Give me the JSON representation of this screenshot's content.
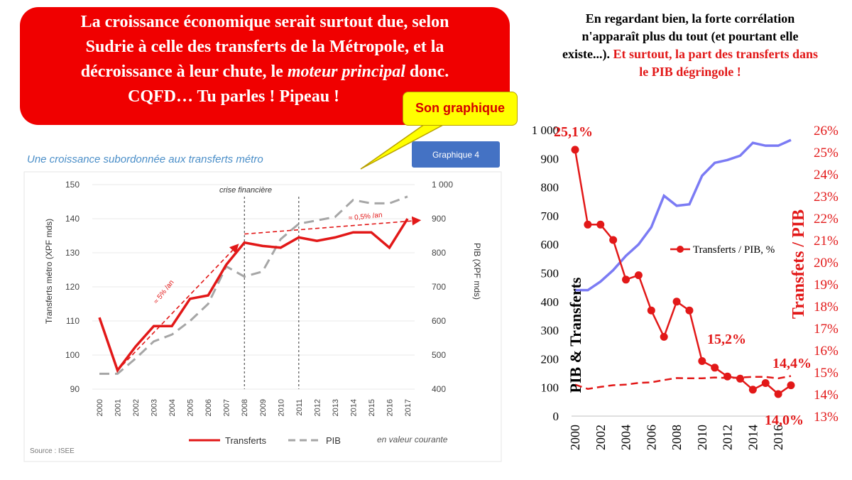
{
  "banner": {
    "line1": "La croissance économique serait surtout due, selon",
    "line2": "Sudrie à celle des transferts de la Métropole, et la",
    "line3_before": "décroissance à leur chute, le",
    "line3_italic": "moteur principal",
    "line3_after": "donc.",
    "line4": "CQFD… Tu parles ! Pipeau !"
  },
  "callout": {
    "label": "Son graphique"
  },
  "right_text": {
    "black": "En regardant bien, la forte corrélation n'apparaît plus du tout (et pourtant elle existe...).",
    "red": "Et surtout, la part des transferts dans le PIB dégringole !"
  },
  "colors": {
    "red": "#e21818",
    "blue": "#7b7bf4",
    "grey": "#a6a6a6",
    "banner": "#f00000",
    "callout": "#ffff00",
    "badge": "#4472c4"
  },
  "chart_data": [
    {
      "type": "line",
      "title": "Une croissance subordonnée aux transferts métro",
      "badge": "Graphique 4",
      "annotation": "crise financière",
      "growth_labels": [
        "≈ 5% /an",
        "≈ 0,5% /an"
      ],
      "source": "Source : ISEE",
      "value_note": "en valeur courante",
      "categories": [
        "2000",
        "2001",
        "2002",
        "2003",
        "2004",
        "2005",
        "2006",
        "2007",
        "2008",
        "2009",
        "2010",
        "2011",
        "2012",
        "2013",
        "2014",
        "2015",
        "2016",
        "2017"
      ],
      "ylabel": "Transferts métro (XPF mds)",
      "y2label": "PIB (XPF mds)",
      "ylim": [
        90,
        150
      ],
      "y2lim": [
        400,
        1000
      ],
      "yticks": [
        "90",
        "100",
        "110",
        "120",
        "130",
        "140",
        "150"
      ],
      "y2ticks": [
        "400",
        "500",
        "600",
        "700",
        "800",
        "900",
        "1 000"
      ],
      "vlines": [
        "2008",
        "2011"
      ],
      "series": [
        {
          "name": "Transferts",
          "axis": "left",
          "style": "solid",
          "values": [
            111,
            95.5,
            102.5,
            108.5,
            108.5,
            116.5,
            117.5,
            126.5,
            133,
            132,
            131.5,
            134.5,
            133.5,
            134.5,
            136,
            136,
            131.5,
            140
          ]
        },
        {
          "name": "PIB",
          "axis": "right",
          "style": "dashed",
          "values": [
            445,
            445,
            490,
            540,
            560,
            600,
            650,
            760,
            730,
            745,
            840,
            885,
            895,
            905,
            955,
            945,
            945,
            965
          ]
        }
      ]
    },
    {
      "type": "line",
      "categories": [
        "2000",
        "2001",
        "2002",
        "2003",
        "2004",
        "2005",
        "2006",
        "2007",
        "2008",
        "2009",
        "2010",
        "2011",
        "2012",
        "2013",
        "2014",
        "2015",
        "2016",
        "2017"
      ],
      "x_tick_labels": [
        "2000",
        "2002",
        "2004",
        "2006",
        "2008",
        "2010",
        "2012",
        "2014",
        "2016"
      ],
      "ylabel": "PIB & Transferts",
      "y2label": "Transfets / PIB",
      "ylim": [
        0,
        1000
      ],
      "y2lim": [
        13,
        26
      ],
      "yticks": [
        "0",
        "100",
        "200",
        "300",
        "400",
        "500",
        "600",
        "700",
        "800",
        "900",
        "1 000"
      ],
      "y2ticks": [
        "13%",
        "14%",
        "15%",
        "16%",
        "17%",
        "18%",
        "19%",
        "20%",
        "21%",
        "22%",
        "23%",
        "24%",
        "25%",
        "26%"
      ],
      "legend_label": "Transferts / PIB, %",
      "point_labels": [
        "25,1%",
        "15,2%",
        "14,4%",
        "14,0%"
      ],
      "series": [
        {
          "name": "PIB",
          "axis": "left",
          "style": "solid",
          "values": [
            440,
            440,
            470,
            510,
            560,
            600,
            660,
            770,
            735,
            740,
            840,
            885,
            895,
            910,
            955,
            945,
            945,
            965
          ]
        },
        {
          "name": "Transferts",
          "axis": "left",
          "style": "dashed",
          "values": [
            110,
            95,
            102,
            108,
            110,
            116,
            118,
            126,
            133,
            132,
            132,
            135,
            133,
            135,
            137,
            137,
            132,
            140
          ]
        },
        {
          "name": "Transferts / PIB, %",
          "axis": "right",
          "style": "solid-markers",
          "values": [
            25.1,
            21.7,
            21.7,
            21.0,
            19.2,
            19.4,
            17.8,
            16.6,
            18.2,
            17.8,
            15.5,
            15.2,
            14.8,
            14.7,
            14.2,
            14.5,
            14.0,
            14.4
          ]
        }
      ]
    }
  ]
}
